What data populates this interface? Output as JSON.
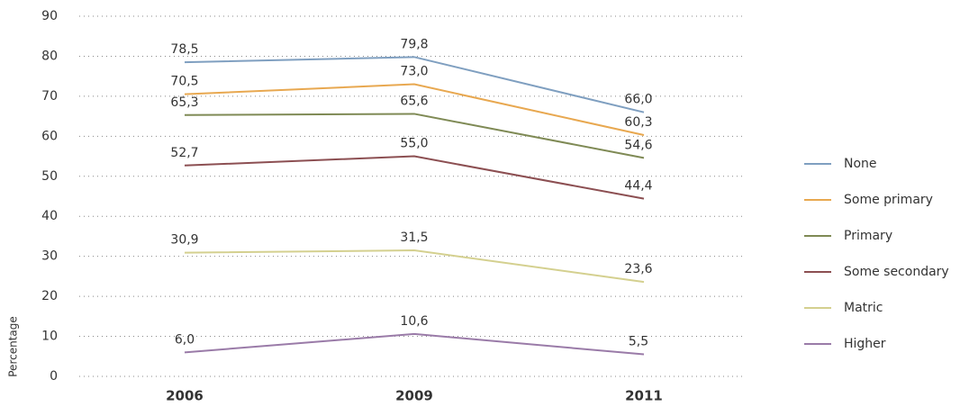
{
  "chart_data": {
    "type": "line",
    "y_label": "Percentage",
    "categories": [
      "2006",
      "2009",
      "2011"
    ],
    "series": [
      {
        "name": "None",
        "color": "#7f9fc0",
        "values": [
          78.5,
          79.8,
          66.0
        ],
        "value_labels": [
          "78,5",
          "79,8",
          "66,0"
        ]
      },
      {
        "name": "Some primary",
        "color": "#e8a850",
        "values": [
          70.5,
          73.0,
          60.3
        ],
        "value_labels": [
          "70,5",
          "73,0",
          "60,3"
        ]
      },
      {
        "name": "Primary",
        "color": "#7f8a55",
        "values": [
          65.3,
          65.6,
          54.6
        ],
        "value_labels": [
          "65,3",
          "65,6",
          "54,6"
        ]
      },
      {
        "name": "Some secondary",
        "color": "#8c4f52",
        "values": [
          52.7,
          55.0,
          44.4
        ],
        "value_labels": [
          "52,7",
          "55,0",
          "44,4"
        ]
      },
      {
        "name": "Matric",
        "color": "#d4d08f",
        "values": [
          30.9,
          31.5,
          23.6
        ],
        "value_labels": [
          "30,9",
          "31,5",
          "23,6"
        ]
      },
      {
        "name": "Higher",
        "color": "#9a7ba8",
        "values": [
          6.0,
          10.6,
          5.5
        ],
        "value_labels": [
          "6,0",
          "10,6",
          "5,5"
        ]
      }
    ],
    "ylim": [
      0,
      90
    ],
    "yticks": [
      0,
      10,
      20,
      30,
      40,
      50,
      60,
      70,
      80,
      90
    ],
    "grid": true,
    "legend": "right"
  }
}
